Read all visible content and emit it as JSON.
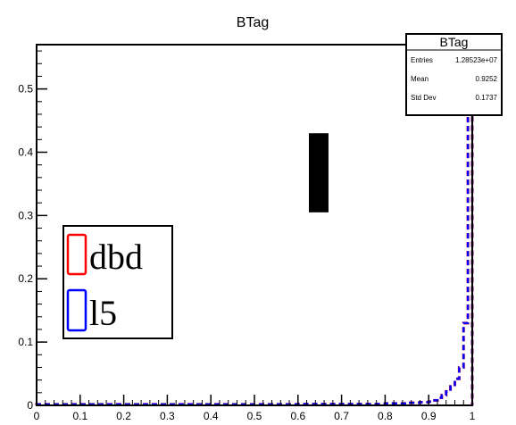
{
  "chart_data": {
    "type": "histogram",
    "title": "BTag",
    "xlim": [
      0,
      1
    ],
    "ylim": [
      0,
      0.57
    ],
    "x_ticks": [
      "0",
      "0.1",
      "0.2",
      "0.3",
      "0.4",
      "0.5",
      "0.6",
      "0.7",
      "0.8",
      "0.9",
      "1"
    ],
    "y_ticks": [
      "0",
      "0.1",
      "0.2",
      "0.3",
      "0.4",
      "0.5"
    ],
    "bin_width": 0.01,
    "series": [
      {
        "name": "dbd",
        "color": "#ff0000",
        "bin_starts": [
          0.0,
          0.1,
          0.2,
          0.3,
          0.4,
          0.5,
          0.6,
          0.7,
          0.8,
          0.85,
          0.88,
          0.9,
          0.91,
          0.92,
          0.93,
          0.94,
          0.95,
          0.96,
          0.97,
          0.98,
          0.99
        ],
        "bin_ends": [
          0.1,
          0.2,
          0.3,
          0.4,
          0.5,
          0.6,
          0.7,
          0.8,
          0.85,
          0.88,
          0.9,
          0.91,
          0.92,
          0.93,
          0.94,
          0.95,
          0.96,
          0.97,
          0.98,
          0.99,
          1.0
        ],
        "values": [
          0.0015,
          0.0015,
          0.0015,
          0.0015,
          0.0015,
          0.0015,
          0.002,
          0.002,
          0.003,
          0.004,
          0.005,
          0.006,
          0.008,
          0.012,
          0.016,
          0.022,
          0.03,
          0.042,
          0.06,
          0.13,
          0.54
        ]
      },
      {
        "name": "l5",
        "color": "#0000ff",
        "bin_starts": [
          0.0,
          0.1,
          0.2,
          0.3,
          0.4,
          0.5,
          0.6,
          0.7,
          0.8,
          0.85,
          0.88,
          0.9,
          0.91,
          0.92,
          0.93,
          0.94,
          0.95,
          0.96,
          0.97,
          0.98,
          0.99
        ],
        "bin_ends": [
          0.1,
          0.2,
          0.3,
          0.4,
          0.5,
          0.6,
          0.7,
          0.8,
          0.85,
          0.88,
          0.9,
          0.91,
          0.92,
          0.93,
          0.94,
          0.95,
          0.96,
          0.97,
          0.98,
          0.99,
          1.0
        ],
        "values": [
          0.0015,
          0.0015,
          0.0015,
          0.0015,
          0.0015,
          0.0015,
          0.002,
          0.002,
          0.003,
          0.004,
          0.005,
          0.006,
          0.008,
          0.012,
          0.016,
          0.022,
          0.03,
          0.042,
          0.06,
          0.13,
          0.54
        ]
      }
    ],
    "marker_rect": {
      "x0": 0.625,
      "x1": 0.67,
      "y0": 0.305,
      "y1": 0.43,
      "color": "#000000"
    },
    "stats_box": {
      "title": "BTag",
      "rows": [
        {
          "label": "Entries",
          "value": "1.28523e+07"
        },
        {
          "label": "Mean",
          "value": "0.9252"
        },
        {
          "label": "Std Dev",
          "value": "0.1737"
        }
      ]
    },
    "legend": {
      "placement": "left",
      "entries": [
        {
          "label": "dbd",
          "color": "#ff0000"
        },
        {
          "label": "l5",
          "color": "#0000ff"
        }
      ]
    }
  }
}
